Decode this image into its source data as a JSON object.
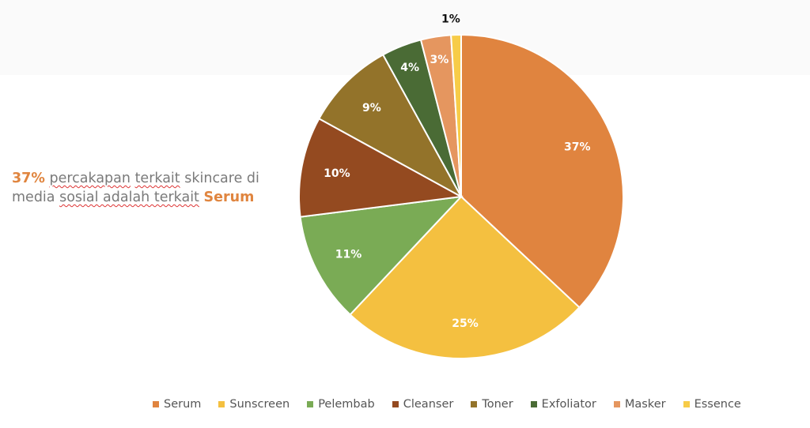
{
  "caption": {
    "highlight_percent": "37%",
    "part1": " ",
    "squiggle1": "percakapan",
    "space1": " ",
    "squiggle2": "terkait",
    "part2": " skincare di media ",
    "squiggle3": "sosial adalah terkait",
    "space2": " ",
    "highlight_word": "Serum"
  },
  "chart_data": {
    "type": "pie",
    "title": "",
    "categories": [
      "Serum",
      "Sunscreen",
      "Pelembab",
      "Cleanser",
      "Toner",
      "Exfoliator",
      "Masker",
      "Essence"
    ],
    "values": [
      37,
      25,
      11,
      10,
      9,
      4,
      3,
      1
    ],
    "labels": [
      "37%",
      "25%",
      "11%",
      "10%",
      "9%",
      "4%",
      "3%",
      "1%"
    ],
    "colors": [
      "#e0843f",
      "#f4c040",
      "#7aab55",
      "#944a20",
      "#93732a",
      "#4a6b35",
      "#e5965f",
      "#f7cc48"
    ],
    "start_angle_deg": 0,
    "direction": "clockwise",
    "legend_position": "bottom"
  }
}
